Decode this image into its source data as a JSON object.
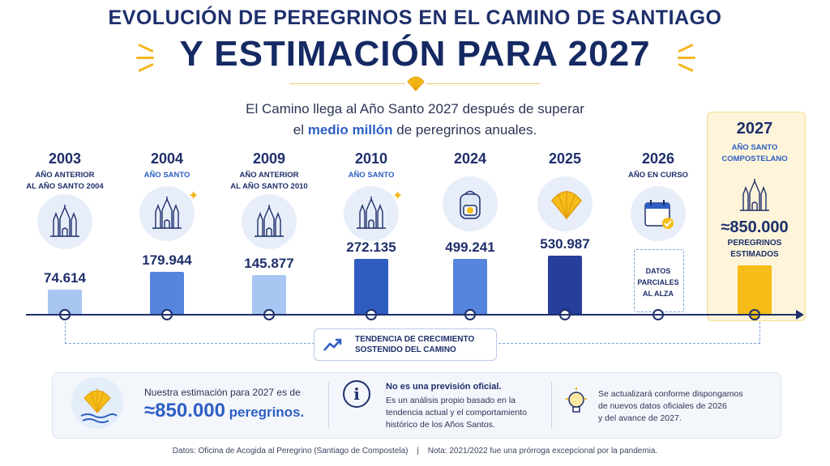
{
  "header": {
    "title_line1": "EVOLUCIÓN DE PEREGRINOS EN EL CAMINO DE SANTIAGO",
    "title_line2": "Y ESTIMACIÓN PARA 2027"
  },
  "subtitle": {
    "part1": "El Camino llega al Año Santo 2027 después de superar",
    "part2a": "el ",
    "part2_highlight": "medio millón",
    "part2b": " de peregrinos anuales."
  },
  "colors": {
    "bar_light": "#a9c6f2",
    "bar_mid": "#5585dd",
    "bar_dark": "#2f5cc0",
    "bar_darkest": "#253f9a",
    "bar_estimate": "#f6bd18",
    "axis": "#1e2f6b"
  },
  "chart_data": {
    "type": "bar",
    "categories": [
      "2003",
      "2004",
      "2009",
      "2010",
      "2024",
      "2025",
      "2026",
      "2027"
    ],
    "descriptions": [
      "AÑO ANTERIOR\nAL AÑO SANTO 2004",
      "AÑO SANTO",
      "AÑO ANTERIOR\nAL AÑO SANTO 2010",
      "AÑO SANTO",
      "",
      "",
      "AÑO EN CURSO",
      "AÑO SANTO\nCOMPOSTELANO"
    ],
    "values": [
      74614,
      179944,
      145877,
      272135,
      499241,
      530987,
      null,
      850000
    ],
    "value_labels": [
      "74.614",
      "179.944",
      "145.877",
      "272.135",
      "499.241",
      "530.987",
      "",
      "≈850.000"
    ],
    "icons": [
      "cathedral-icon",
      "cathedral-icon",
      "cathedral-icon",
      "cathedral-icon",
      "backpack-icon",
      "scallop-shell-icon",
      "calendar-check-icon",
      "cathedral-icon"
    ],
    "estimate_note": "PEREGRINOS\nESTIMADOS",
    "partial_note": "DATOS\nPARCIALES\nAL ALZA"
  },
  "trend": {
    "label": "TENDENCIA DE CRECIMIENTO\nSOSTENIDO DEL CAMINO"
  },
  "estimate_box": {
    "intro": "Nuestra estimación para 2027 es de",
    "number": "≈850.000",
    "unit": " peregrinos."
  },
  "notice_box": {
    "heading": "No es una previsión oficial.",
    "body": "Es un análisis propio basado en la\ntendencia actual y el comportamiento\nhistórico de los Años Santos."
  },
  "update_box": {
    "body": "Se actualizará conforme dispongamos\nde nuevos datos oficiales de 2026\ny del avance de 2027."
  },
  "footer": {
    "source": "Datos: Oficina de Acogida al Peregrino (Santiago de Compostela)",
    "separator": "|",
    "note": "Nota: 2021/2022 fue una prórroga excepcional por la pandemia."
  }
}
